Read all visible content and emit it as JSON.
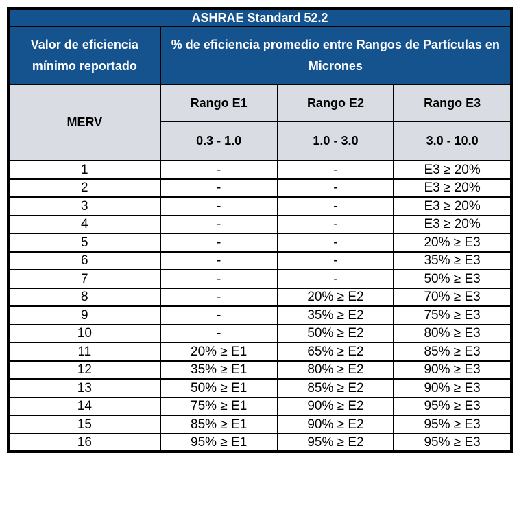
{
  "table": {
    "title": "ASHRAE Standard 52.2",
    "header": {
      "left_title": "Valor de eficiencia mínimo reportado",
      "right_title": "% de eficiencia promedio entre Rangos de Partículas en Micrones",
      "merv_label": "MERV",
      "range_headers": [
        "Rango E1",
        "Rango E2",
        "Rango E3"
      ],
      "range_microns": [
        "0.3 - 1.0",
        "1.0 - 3.0",
        "3.0 - 10.0"
      ]
    },
    "rows": [
      [
        "1",
        "-",
        "-",
        "E3 ≥ 20%"
      ],
      [
        "2",
        "-",
        "-",
        "E3 ≥ 20%"
      ],
      [
        "3",
        "-",
        "-",
        "E3 ≥ 20%"
      ],
      [
        "4",
        "-",
        "-",
        "E3 ≥ 20%"
      ],
      [
        "5",
        "-",
        "-",
        "20% ≥ E3"
      ],
      [
        "6",
        "-",
        "-",
        "35% ≥ E3"
      ],
      [
        "7",
        "-",
        "-",
        "50% ≥ E3"
      ],
      [
        "8",
        "-",
        "20% ≥ E2",
        "70% ≥ E3"
      ],
      [
        "9",
        "-",
        "35% ≥ E2",
        "75% ≥ E3"
      ],
      [
        "10",
        "-",
        "50% ≥ E2",
        "80% ≥ E3"
      ],
      [
        "11",
        "20% ≥ E1",
        "65% ≥ E2",
        "85% ≥ E3"
      ],
      [
        "12",
        "35% ≥ E1",
        "80% ≥ E2",
        "90% ≥ E3"
      ],
      [
        "13",
        "50% ≥ E1",
        "85% ≥ E2",
        "90% ≥ E3"
      ],
      [
        "14",
        "75% ≥ E1",
        "90% ≥ E2",
        "95% ≥ E3"
      ],
      [
        "15",
        "85% ≥ E1",
        "90% ≥ E2",
        "95% ≥ E3"
      ],
      [
        "16",
        "95% ≥ E1",
        "95% ≥ E2",
        "95% ≥ E3"
      ]
    ]
  },
  "colors": {
    "header_blue": "#15538e",
    "header_gray": "#d9dde3",
    "border": "#000000",
    "header_text": "#ffffff",
    "body_text": "#000000"
  }
}
